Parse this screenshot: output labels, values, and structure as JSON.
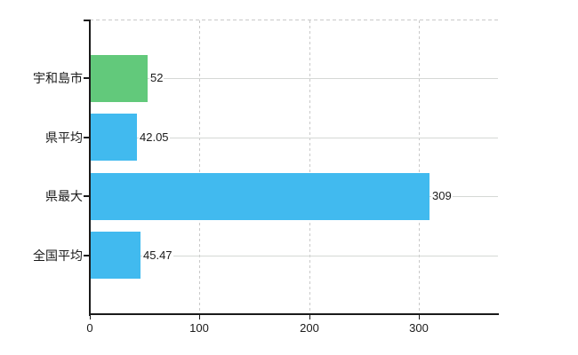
{
  "chart_data": {
    "type": "bar",
    "orientation": "horizontal",
    "title": "",
    "categories": [
      "宇和島市",
      "県平均",
      "県最大",
      "全国平均"
    ],
    "values": [
      52,
      42.05,
      309,
      45.47
    ],
    "value_labels": [
      "52",
      "42.05",
      "309",
      "45.47"
    ],
    "bar_colors": [
      "#62c97b",
      "#41baef",
      "#41baef",
      "#41baef"
    ],
    "xticks": [
      0,
      100,
      200,
      300
    ],
    "xtick_labels": [
      "0",
      "100",
      "200",
      "300"
    ],
    "xlim": [
      0,
      372
    ],
    "grid": {
      "vertical": "dashed",
      "horizontal": "solid-at-category-centers",
      "top_border": "dashed"
    },
    "legend_position": "none",
    "colors": {
      "bar_highlight": "#62c97b",
      "bar_default": "#41baef",
      "axis": "#1a1a1a",
      "grid_solid": "#d5d8d5",
      "grid_dashed": "#c9c9c9",
      "text": "#1a1a1a",
      "background": "#ffffff"
    }
  }
}
